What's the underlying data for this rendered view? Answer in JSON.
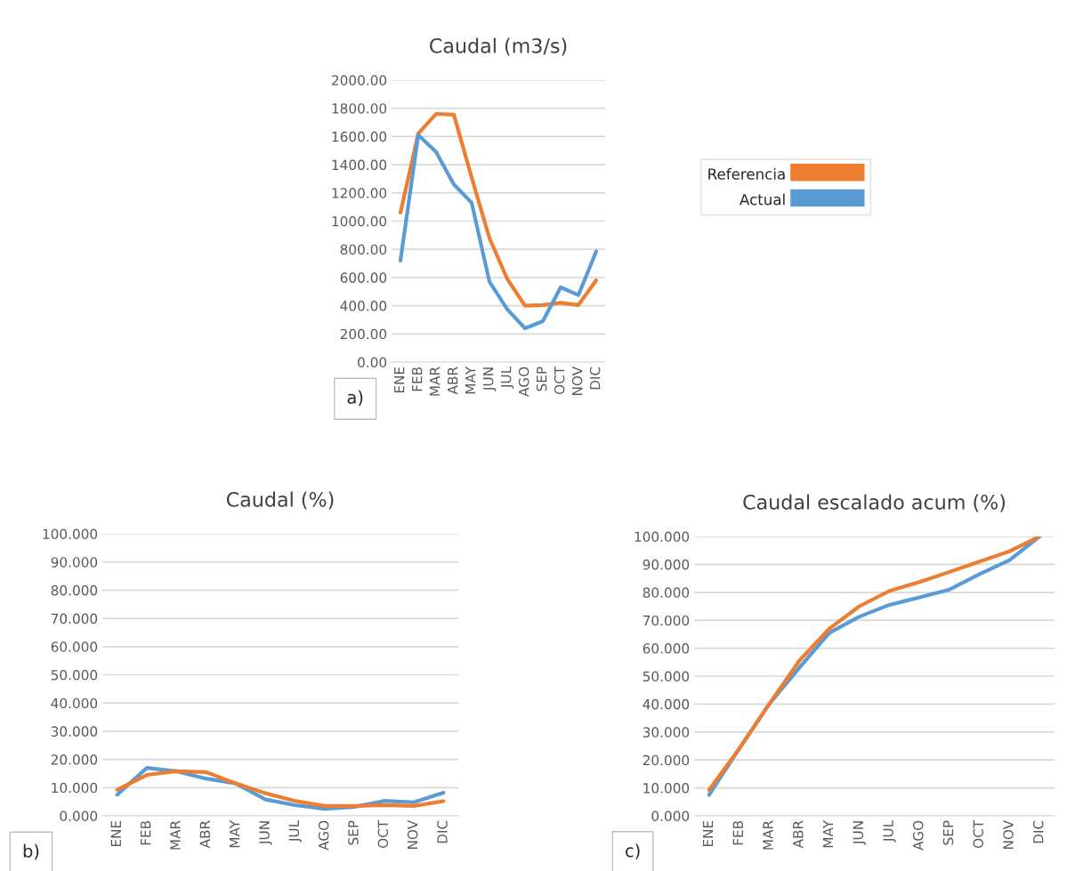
{
  "chart_data": [
    {
      "type": "line",
      "title": "Caudal (m3/s)",
      "categories": [
        "ENE",
        "FEB",
        "MAR",
        "ABR",
        "MAY",
        "JUN",
        "JUL",
        "AGO",
        "SEP",
        "OCT",
        "NOV",
        "DIC"
      ],
      "series": [
        {
          "name": "Referencia",
          "color": "#ed7d31",
          "values": [
            1060,
            1620,
            1760,
            1755,
            1310,
            880,
            590,
            400,
            405,
            420,
            405,
            580
          ]
        },
        {
          "name": "Actual",
          "color": "#5b9bd5",
          "values": [
            720,
            1610,
            1490,
            1260,
            1130,
            570,
            375,
            240,
            290,
            530,
            475,
            785
          ]
        }
      ],
      "ylim": [
        0,
        2000
      ],
      "yticks": [
        {
          "value": 0,
          "label": "0.00"
        },
        {
          "value": 200,
          "label": "200.00"
        },
        {
          "value": 400,
          "label": "400.00"
        },
        {
          "value": 600,
          "label": "600.00"
        },
        {
          "value": 800,
          "label": "800.00"
        },
        {
          "value": 1000,
          "label": "1000.00"
        },
        {
          "value": 1200,
          "label": "1200.00"
        },
        {
          "value": 1400,
          "label": "1400.00"
        },
        {
          "value": 1600,
          "label": "1600.00"
        },
        {
          "value": 1800,
          "label": "1800.00"
        },
        {
          "value": 2000,
          "label": "2000.00"
        }
      ],
      "grid": "y",
      "legend": "right",
      "annotations": [
        "a)"
      ]
    },
    {
      "type": "line",
      "title": "Caudal (%)",
      "categories": [
        "ENE",
        "FEB",
        "MAR",
        "ABR",
        "MAY",
        "JUN",
        "JUL",
        "AGO",
        "SEP",
        "OCT",
        "NOV",
        "DIC"
      ],
      "series": [
        {
          "color": "#5b9bd5",
          "values": [
            7.5,
            17,
            15.8,
            13.2,
            11.5,
            5.8,
            3.8,
            2.5,
            3.2,
            5.3,
            4.8,
            8.2
          ]
        },
        {
          "color": "#ed7d31",
          "values": [
            9.3,
            14.5,
            15.8,
            15.5,
            11.5,
            8,
            5.3,
            3.5,
            3.5,
            3.8,
            3.5,
            5.2
          ]
        }
      ],
      "ylim": [
        0,
        100
      ],
      "yticks": [
        {
          "value": 0,
          "label": "0.000"
        },
        {
          "value": 10,
          "label": "10.000"
        },
        {
          "value": 20,
          "label": "20.000"
        },
        {
          "value": 30,
          "label": "30.000"
        },
        {
          "value": 40,
          "label": "40.000"
        },
        {
          "value": 50,
          "label": "50.000"
        },
        {
          "value": 60,
          "label": "60.000"
        },
        {
          "value": 70,
          "label": "70.000"
        },
        {
          "value": 80,
          "label": "80.000"
        },
        {
          "value": 90,
          "label": "90.000"
        },
        {
          "value": 100,
          "label": "100.000"
        }
      ],
      "grid": "y",
      "annotations": [
        "b)"
      ]
    },
    {
      "type": "line",
      "title": "Caudal escalado acum (%)",
      "categories": [
        "ENE",
        "FEB",
        "MAR",
        "ABR",
        "MAY",
        "JUN",
        "JUL",
        "AGO",
        "SEP",
        "OCT",
        "NOV",
        "DIC"
      ],
      "series": [
        {
          "color": "#5b9bd5",
          "values": [
            7.5,
            24,
            40,
            53,
            65.5,
            71.3,
            75.5,
            78.2,
            81,
            86.5,
            91.5,
            100
          ]
        },
        {
          "color": "#ed7d31",
          "values": [
            9.3,
            24,
            40,
            55.5,
            67,
            75,
            80.5,
            83.7,
            87.3,
            91,
            94.7,
            100
          ]
        }
      ],
      "ylim": [
        0,
        100
      ],
      "yticks": [
        {
          "value": 0,
          "label": "0.000"
        },
        {
          "value": 10,
          "label": "10.000"
        },
        {
          "value": 20,
          "label": "20.000"
        },
        {
          "value": 30,
          "label": "30.000"
        },
        {
          "value": 40,
          "label": "40.000"
        },
        {
          "value": 50,
          "label": "50.000"
        },
        {
          "value": 60,
          "label": "60.000"
        },
        {
          "value": 70,
          "label": "70.000"
        },
        {
          "value": 80,
          "label": "80.000"
        },
        {
          "value": 90,
          "label": "90.000"
        },
        {
          "value": 100,
          "label": "100.000"
        }
      ],
      "grid": "y",
      "annotations": [
        "c)"
      ]
    }
  ]
}
